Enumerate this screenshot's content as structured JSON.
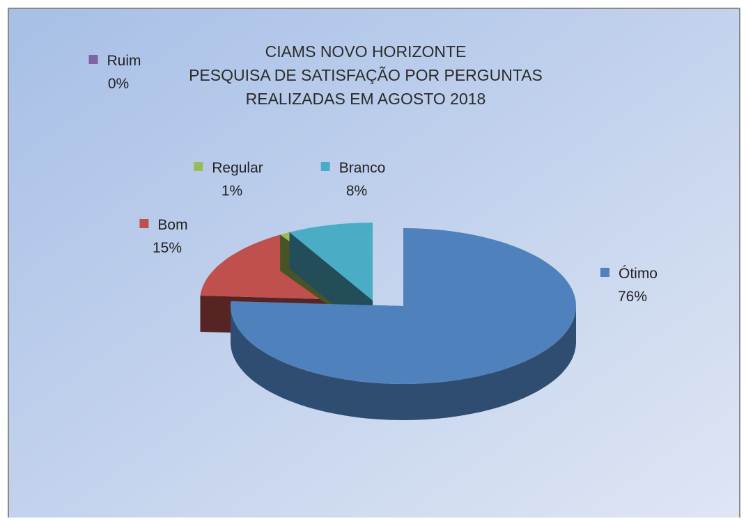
{
  "chart_data": {
    "type": "pie",
    "title": [
      "CIAMS NOVO HORIZONTE",
      "PESQUISA DE SATISFAÇÃO POR PERGUNTAS",
      "REALIZADAS EM  AGOSTO 2018"
    ],
    "categories": [
      "Ótimo",
      "Bom",
      "Regular",
      "Ruim",
      "Branco"
    ],
    "values": [
      76,
      15,
      1,
      0,
      8
    ],
    "value_labels": [
      "76%",
      "15%",
      "1%",
      "0%",
      "8%"
    ],
    "colors": [
      "#4f81bd",
      "#c0504d",
      "#9bbb59",
      "#8064a2",
      "#4bacc6"
    ]
  }
}
